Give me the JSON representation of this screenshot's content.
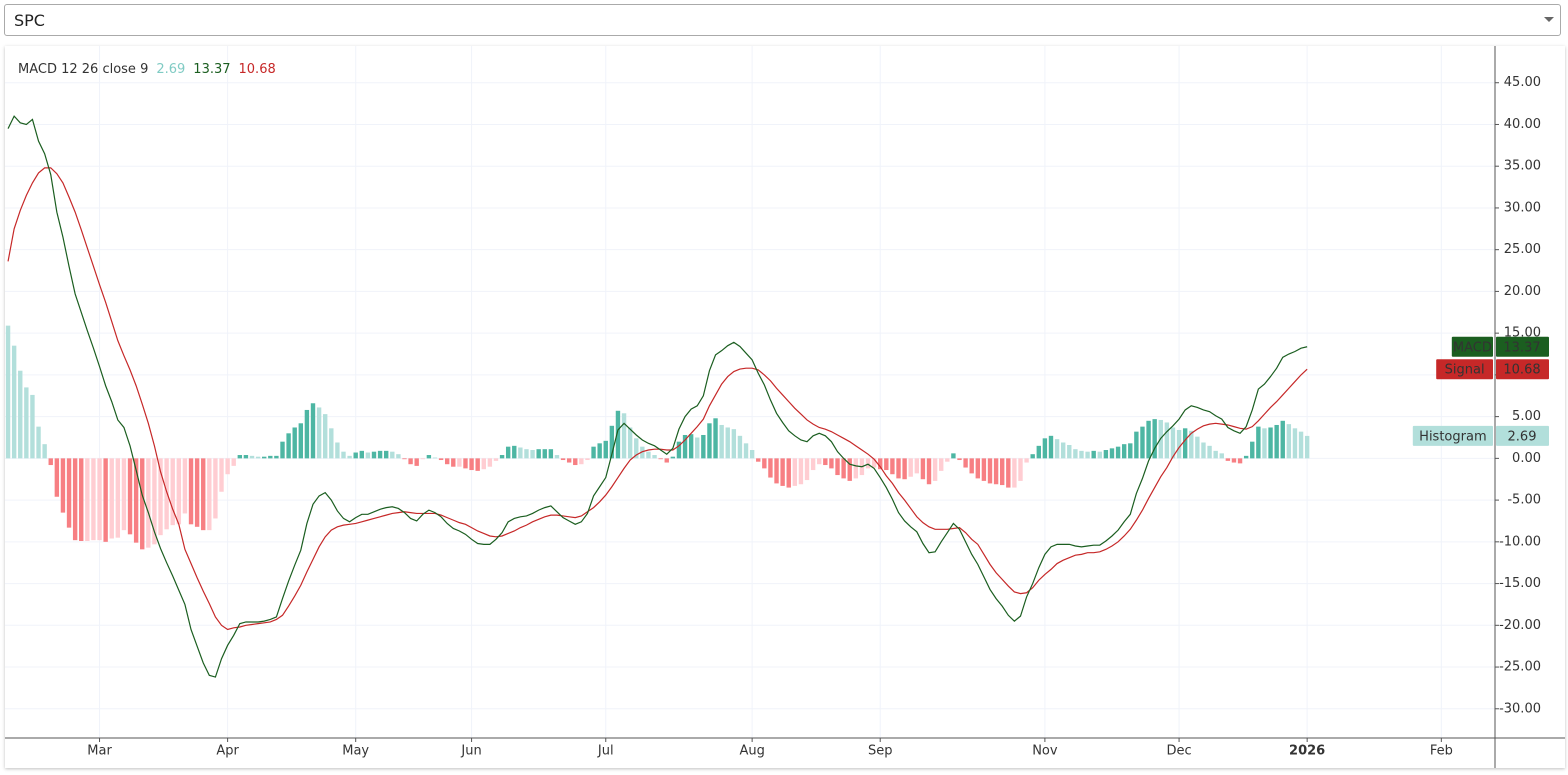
{
  "symbol": "SPC",
  "chart_data": {
    "type": "macd",
    "title": "MACD 12 26 close 9",
    "x": [
      0,
      1,
      2,
      3,
      4,
      5,
      6,
      7,
      8,
      9,
      10,
      11,
      12,
      13,
      14,
      15,
      16,
      17,
      18,
      19,
      20,
      21,
      22,
      23,
      24,
      25,
      26,
      27,
      28,
      29,
      30,
      31,
      32,
      33,
      34,
      35,
      36,
      37,
      38,
      39,
      40,
      41,
      42,
      43,
      44,
      45,
      46,
      47,
      48,
      49,
      50,
      51,
      52,
      53,
      54,
      55,
      56,
      57,
      58,
      59,
      60,
      61,
      62,
      63,
      64,
      65,
      66,
      67,
      68,
      69,
      70,
      71,
      72,
      73,
      74,
      75,
      76,
      77,
      78,
      79,
      80,
      81,
      82,
      83,
      84,
      85,
      86,
      87,
      88,
      89,
      90,
      91,
      92,
      93,
      94,
      95,
      96,
      97,
      98,
      99,
      100,
      101,
      102,
      103,
      104,
      105,
      106,
      107,
      108,
      109,
      110,
      111,
      112,
      113,
      114,
      115,
      116,
      117,
      118,
      119,
      120,
      121,
      122,
      123,
      124,
      125,
      126,
      127,
      128,
      129,
      130,
      131,
      132,
      133,
      134,
      135,
      136,
      137,
      138,
      139,
      140,
      141,
      142,
      143,
      144,
      145,
      146,
      147,
      148,
      149,
      150,
      151,
      152,
      153,
      154,
      155,
      156,
      157,
      158,
      159,
      160,
      161,
      162,
      163,
      164,
      165,
      166,
      167,
      168,
      169,
      170,
      171,
      172,
      173,
      174,
      175,
      176,
      177,
      178,
      179,
      180,
      181,
      182,
      183,
      184,
      185,
      186,
      187,
      188,
      189,
      190,
      191,
      192,
      193,
      194,
      195,
      196,
      197,
      198,
      199,
      200,
      201,
      202,
      203,
      204,
      205,
      206,
      207,
      208,
      209,
      210,
      211,
      212,
      213
    ],
    "series": [
      {
        "name": "MACD",
        "color": "#1b5e20",
        "values": [
          39.5,
          41.0,
          40.2,
          40.0,
          40.6,
          38.0,
          36.5,
          34.0,
          29.5,
          26.5,
          23.0,
          19.7,
          17.5,
          15.3,
          13.2,
          11.0,
          8.7,
          6.8,
          4.6,
          3.7,
          1.5,
          -1.4,
          -4.4,
          -6.5,
          -8.8,
          -10.8,
          -12.5,
          -14.1,
          -15.8,
          -17.5,
          -20.5,
          -22.5,
          -24.5,
          -26.0,
          -26.2,
          -24.0,
          -22.4,
          -21.2,
          -19.8,
          -19.6,
          -19.6,
          -19.6,
          -19.5,
          -19.3,
          -19.0,
          -16.8,
          -14.7,
          -12.8,
          -11.0,
          -7.8,
          -5.5,
          -4.5,
          -4.1,
          -5.0,
          -6.3,
          -7.2,
          -7.6,
          -7.1,
          -6.7,
          -6.7,
          -6.4,
          -6.1,
          -5.9,
          -5.8,
          -6.0,
          -6.5,
          -7.2,
          -7.5,
          -6.7,
          -6.2,
          -6.5,
          -7.0,
          -7.8,
          -8.4,
          -8.7,
          -9.1,
          -9.7,
          -10.2,
          -10.3,
          -10.3,
          -9.7,
          -8.9,
          -7.6,
          -7.2,
          -7.0,
          -6.9,
          -6.6,
          -6.2,
          -5.9,
          -5.7,
          -6.4,
          -7.1,
          -7.5,
          -7.9,
          -7.6,
          -6.6,
          -4.5,
          -3.4,
          -2.3,
          0.5,
          3.4,
          4.2,
          3.5,
          2.8,
          2.2,
          1.8,
          1.5,
          1.0,
          0.5,
          1.2,
          3.5,
          5.0,
          5.9,
          6.3,
          7.5,
          10.5,
          12.4,
          12.9,
          13.5,
          13.9,
          13.4,
          12.6,
          11.8,
          10.2,
          8.8,
          7.0,
          5.4,
          4.3,
          3.3,
          2.7,
          2.2,
          2.0,
          2.7,
          3.0,
          2.7,
          2.0,
          0.8,
          0.0,
          -0.7,
          -0.9,
          -1.0,
          -0.7,
          -1.2,
          -2.3,
          -3.5,
          -4.9,
          -6.5,
          -7.5,
          -8.2,
          -8.8,
          -10.2,
          -11.3,
          -11.2,
          -10.0,
          -8.9,
          -7.8,
          -8.5,
          -10.0,
          -11.5,
          -12.7,
          -14.2,
          -15.7,
          -16.8,
          -17.7,
          -18.8,
          -19.5,
          -18.9,
          -16.6,
          -15.0,
          -13.1,
          -11.5,
          -10.6,
          -10.3,
          -10.3,
          -10.3,
          -10.5,
          -10.6,
          -10.5,
          -10.4,
          -10.4,
          -9.9,
          -9.3,
          -8.6,
          -7.6,
          -6.7,
          -4.2,
          -2.4,
          -0.3,
          1.2,
          2.4,
          3.2,
          3.9,
          4.7,
          5.8,
          6.3,
          6.1,
          5.8,
          5.6,
          5.1,
          4.7,
          3.7,
          3.3,
          3.0,
          3.8,
          5.8,
          8.3,
          8.9,
          9.8,
          10.8,
          12.1,
          12.5,
          12.8,
          13.2,
          13.37
        ]
      },
      {
        "name": "Signal",
        "color": "#c62828",
        "values": [
          23.6,
          27.5,
          29.7,
          31.5,
          33.0,
          34.2,
          34.8,
          34.8,
          34.1,
          33.0,
          31.3,
          29.5,
          27.4,
          25.2,
          23.0,
          20.8,
          18.7,
          16.4,
          14.1,
          12.3,
          10.6,
          8.7,
          6.5,
          4.2,
          1.5,
          -1.6,
          -4.0,
          -6.1,
          -7.9,
          -10.9,
          -12.6,
          -14.3,
          -15.9,
          -17.4,
          -19.0,
          -20.0,
          -20.5,
          -20.3,
          -20.2,
          -20.0,
          -19.9,
          -19.8,
          -19.7,
          -19.6,
          -19.3,
          -18.8,
          -17.7,
          -16.5,
          -15.2,
          -13.6,
          -12.1,
          -10.6,
          -9.4,
          -8.6,
          -8.2,
          -8.0,
          -7.9,
          -7.8,
          -7.6,
          -7.4,
          -7.2,
          -7.0,
          -6.8,
          -6.6,
          -6.5,
          -6.4,
          -6.5,
          -6.6,
          -6.6,
          -6.6,
          -6.6,
          -6.8,
          -7.1,
          -7.4,
          -7.7,
          -7.9,
          -8.3,
          -8.7,
          -9.0,
          -9.3,
          -9.4,
          -9.3,
          -9.0,
          -8.7,
          -8.3,
          -8.0,
          -7.6,
          -7.3,
          -7.0,
          -6.8,
          -6.8,
          -6.9,
          -7.0,
          -7.1,
          -6.9,
          -6.4,
          -5.9,
          -5.2,
          -4.4,
          -3.4,
          -2.3,
          -1.2,
          -0.2,
          0.4,
          0.8,
          1.0,
          1.1,
          1.1,
          1.0,
          1.0,
          1.5,
          2.2,
          3.0,
          3.8,
          4.7,
          6.3,
          7.6,
          8.9,
          9.8,
          10.4,
          10.7,
          10.8,
          10.8,
          10.6,
          10.0,
          9.3,
          8.4,
          7.6,
          6.8,
          6.0,
          5.3,
          4.6,
          4.1,
          3.7,
          3.5,
          3.2,
          2.8,
          2.4,
          2.0,
          1.5,
          1.0,
          0.5,
          -0.1,
          -1.0,
          -2.1,
          -3.0,
          -4.1,
          -5.0,
          -6.0,
          -7.0,
          -7.7,
          -8.2,
          -8.5,
          -8.5,
          -8.5,
          -8.4,
          -8.3,
          -8.9,
          -9.7,
          -10.3,
          -11.5,
          -12.7,
          -13.7,
          -14.5,
          -15.3,
          -16.0,
          -16.2,
          -16.1,
          -15.5,
          -14.6,
          -13.9,
          -13.3,
          -12.6,
          -12.2,
          -11.9,
          -11.6,
          -11.5,
          -11.3,
          -11.3,
          -11.2,
          -10.9,
          -10.5,
          -10.0,
          -9.3,
          -8.5,
          -7.4,
          -6.2,
          -4.8,
          -3.5,
          -2.2,
          -1.1,
          0.2,
          1.3,
          2.2,
          3.0,
          3.5,
          3.9,
          4.1,
          4.2,
          4.1,
          4.0,
          3.8,
          3.6,
          3.5,
          3.8,
          4.5,
          5.3,
          6.1,
          6.8,
          7.6,
          8.4,
          9.2,
          10.0,
          10.68
        ]
      },
      {
        "name": "Histogram",
        "color": "#b2dfdb",
        "colors": {
          "positive_rising": "#4db6a3",
          "positive_falling": "#b2dfdb",
          "negative_falling": "#f77f83",
          "negative_rising": "#ffcdd2"
        },
        "values": [
          15.9,
          13.5,
          10.5,
          8.5,
          7.6,
          3.8,
          1.7,
          -0.8,
          -4.6,
          -6.5,
          -8.3,
          -9.8,
          -9.9,
          -9.9,
          -9.8,
          -9.8,
          -10.0,
          -9.6,
          -9.5,
          -8.6,
          -9.1,
          -10.1,
          -10.9,
          -10.7,
          -10.3,
          -9.2,
          -8.5,
          -8.0,
          -7.9,
          -6.6,
          -7.9,
          -8.2,
          -8.6,
          -8.6,
          -7.2,
          -4.0,
          -1.9,
          -0.9,
          0.4,
          0.4,
          0.3,
          0.2,
          0.2,
          0.3,
          0.3,
          2.0,
          3.0,
          3.7,
          4.2,
          5.8,
          6.6,
          6.1,
          5.3,
          3.6,
          1.9,
          0.8,
          0.3,
          0.7,
          0.9,
          0.7,
          0.8,
          0.9,
          0.9,
          0.8,
          0.5,
          -0.1,
          -0.7,
          -0.9,
          -0.1,
          0.4,
          0.1,
          -0.2,
          -0.7,
          -1.0,
          -1.0,
          -1.2,
          -1.4,
          -1.5,
          -1.3,
          -1.0,
          -0.3,
          0.4,
          1.4,
          1.5,
          1.3,
          1.1,
          1.0,
          1.1,
          1.1,
          1.1,
          0.4,
          -0.2,
          -0.5,
          -0.8,
          -0.7,
          -0.2,
          1.4,
          1.8,
          2.1,
          3.9,
          5.7,
          5.4,
          3.7,
          2.4,
          1.4,
          0.8,
          0.4,
          -0.1,
          -0.5,
          0.2,
          2.0,
          2.8,
          2.9,
          2.5,
          2.8,
          4.2,
          4.8,
          4.0,
          3.7,
          3.5,
          2.7,
          1.8,
          1.0,
          -0.4,
          -1.2,
          -2.3,
          -3.0,
          -3.3,
          -3.5,
          -3.3,
          -3.1,
          -2.6,
          -1.4,
          -0.7,
          -0.8,
          -1.2,
          -2.0,
          -2.4,
          -2.7,
          -2.4,
          -2.0,
          -1.2,
          -1.1,
          -1.3,
          -1.4,
          -1.9,
          -2.4,
          -2.5,
          -2.2,
          -1.8,
          -2.5,
          -3.1,
          -2.7,
          -1.5,
          -0.4,
          0.6,
          -0.2,
          -1.1,
          -1.8,
          -2.4,
          -2.7,
          -3.0,
          -3.1,
          -3.2,
          -3.5,
          -3.5,
          -2.7,
          -0.5,
          0.5,
          1.5,
          2.4,
          2.7,
          2.3,
          1.9,
          1.6,
          1.1,
          0.9,
          0.8,
          0.9,
          0.8,
          1.0,
          1.2,
          1.4,
          1.7,
          1.8,
          3.2,
          3.8,
          4.5,
          4.7,
          4.6,
          4.3,
          3.7,
          3.4,
          3.6,
          3.3,
          2.6,
          1.9,
          1.5,
          0.9,
          0.6,
          -0.3,
          -0.5,
          -0.6,
          0.3,
          2.0,
          3.8,
          3.6,
          3.7,
          4.0,
          4.5,
          4.1,
          3.6,
          3.2,
          2.69
        ]
      }
    ],
    "xlim": [
      -0.5,
      243.8
    ],
    "xticks": [
      {
        "value": 15,
        "label": "Mar"
      },
      {
        "value": 36,
        "label": "Apr"
      },
      {
        "value": 57,
        "label": "May"
      },
      {
        "value": 76,
        "label": "Jun"
      },
      {
        "value": 98,
        "label": "Jul"
      },
      {
        "value": 122,
        "label": "Aug"
      },
      {
        "value": 143,
        "label": "Sep"
      },
      {
        "value": 170,
        "label": "Nov"
      },
      {
        "value": 192,
        "label": "Dec"
      },
      {
        "value": 213,
        "label": "2026"
      },
      {
        "value": 235,
        "label": "Feb"
      }
    ],
    "ylim": [
      -33.5,
      49.4
    ],
    "yticks": [
      {
        "value": 45,
        "label": "45.00"
      },
      {
        "value": 40,
        "label": "40.00"
      },
      {
        "value": 35,
        "label": "35.00"
      },
      {
        "value": 30,
        "label": "30.00"
      },
      {
        "value": 25,
        "label": "25.00"
      },
      {
        "value": 20,
        "label": "20.00"
      },
      {
        "value": 15,
        "label": "15.00"
      },
      {
        "value": 10,
        "label": "10.00"
      },
      {
        "value": 5,
        "label": "5.00"
      },
      {
        "value": 0,
        "label": "0.00"
      },
      {
        "value": -5,
        "label": "-5.00"
      },
      {
        "value": -10,
        "label": "-10.00"
      },
      {
        "value": -15,
        "label": "-15.00"
      },
      {
        "value": -20,
        "label": "-20.00"
      },
      {
        "value": -25,
        "label": "-25.00"
      },
      {
        "value": -30,
        "label": "-30.00"
      }
    ],
    "grid": true
  }
}
